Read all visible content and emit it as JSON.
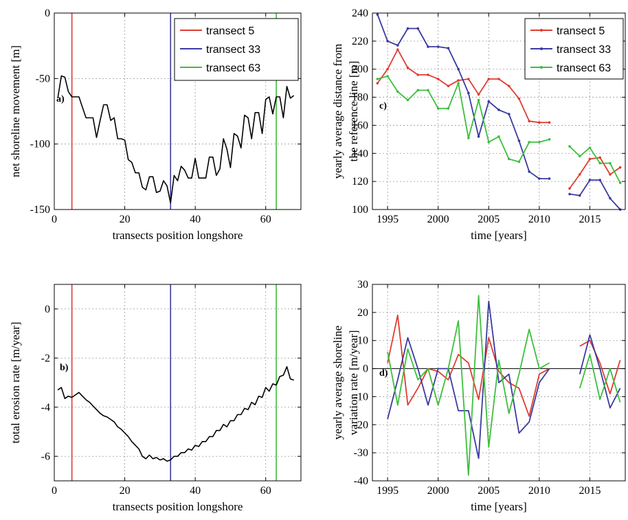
{
  "chart_data": [
    {
      "type": "line",
      "panel_label": "a)",
      "xlabel": "transects position longshore",
      "ylabel": "net shoreline movement [m]",
      "xlim": [
        0,
        70
      ],
      "ylim": [
        -150,
        0
      ],
      "xticks": [
        0,
        20,
        40,
        60
      ],
      "xtick_labels": [
        "0",
        "20",
        "40",
        "60"
      ],
      "yticks": [
        -150,
        -100,
        -50,
        0
      ],
      "ytick_labels": [
        "-150",
        "-100",
        "-50",
        "0"
      ],
      "grid": true,
      "legend_position": "top-right",
      "legend": [
        "transect 5",
        "transect 33",
        "transect 63"
      ],
      "vlines": [
        {
          "x": 5,
          "color": "#e03c31"
        },
        {
          "x": 33,
          "color": "#3a3aa0"
        },
        {
          "x": 63,
          "color": "#3cbf3c"
        }
      ],
      "series": [
        {
          "color": "#000000",
          "x": [
            1,
            2,
            3,
            4,
            5,
            6,
            7,
            8,
            9,
            10,
            11,
            12,
            13,
            14,
            15,
            16,
            17,
            18,
            19,
            20,
            21,
            22,
            23,
            24,
            25,
            26,
            27,
            28,
            29,
            30,
            31,
            32,
            33,
            34,
            35,
            36,
            37,
            38,
            39,
            40,
            41,
            42,
            43,
            44,
            45,
            46,
            47,
            48,
            49,
            50,
            51,
            52,
            53,
            54,
            55,
            56,
            57,
            58,
            59,
            60,
            61,
            62,
            63,
            64,
            65,
            66,
            67,
            68
          ],
          "y": [
            -65,
            -48,
            -49,
            -60,
            -64,
            -64,
            -64,
            -72,
            -80,
            -80,
            -80,
            -95,
            -82,
            -70,
            -70,
            -82,
            -80,
            -96,
            -96,
            -97,
            -112,
            -114,
            -122,
            -122,
            -133,
            -135,
            -125,
            -125,
            -137,
            -136,
            -128,
            -132,
            -145,
            -124,
            -128,
            -117,
            -120,
            -126,
            -126,
            -111,
            -126,
            -126,
            -126,
            -110,
            -110,
            -124,
            -119,
            -96,
            -104,
            -118,
            -92,
            -94,
            -103,
            -78,
            -80,
            -96,
            -76,
            -76,
            -92,
            -66,
            -64,
            -77,
            -64,
            -64,
            -80,
            -56,
            -65,
            -63
          ]
        }
      ]
    },
    {
      "type": "line",
      "panel_label": "b)",
      "xlabel": "transects position longshore",
      "ylabel": "total erosion rate [m/year]",
      "xlim": [
        0,
        70
      ],
      "ylim": [
        -7,
        1
      ],
      "xticks": [
        0,
        20,
        40,
        60
      ],
      "xtick_labels": [
        "0",
        "20",
        "40",
        "60"
      ],
      "yticks": [
        -6,
        -4,
        -2,
        0
      ],
      "ytick_labels": [
        "-6",
        "-4",
        "-2",
        "0"
      ],
      "grid": true,
      "vlines": [
        {
          "x": 5,
          "color": "#e03c31"
        },
        {
          "x": 33,
          "color": "#3a3aa0"
        },
        {
          "x": 63,
          "color": "#3cbf3c"
        }
      ],
      "series": [
        {
          "color": "#000000",
          "x": [
            1,
            2,
            3,
            4,
            5,
            6,
            7,
            8,
            9,
            10,
            11,
            12,
            13,
            14,
            15,
            16,
            17,
            18,
            19,
            20,
            21,
            22,
            23,
            24,
            25,
            26,
            27,
            28,
            29,
            30,
            31,
            32,
            33,
            34,
            35,
            36,
            37,
            38,
            39,
            40,
            41,
            42,
            43,
            44,
            45,
            46,
            47,
            48,
            49,
            50,
            51,
            52,
            53,
            54,
            55,
            56,
            57,
            58,
            59,
            60,
            61,
            62,
            63,
            64,
            65,
            66,
            67,
            68
          ],
          "y": [
            -3.3,
            -3.2,
            -3.65,
            -3.55,
            -3.6,
            -3.5,
            -3.4,
            -3.55,
            -3.7,
            -3.8,
            -3.95,
            -4.1,
            -4.25,
            -4.35,
            -4.4,
            -4.5,
            -4.6,
            -4.8,
            -4.9,
            -5.05,
            -5.2,
            -5.4,
            -5.55,
            -5.7,
            -6.0,
            -6.1,
            -5.95,
            -6.1,
            -6.05,
            -6.15,
            -6.1,
            -6.2,
            -6.15,
            -6.0,
            -6.0,
            -5.85,
            -5.85,
            -5.7,
            -5.75,
            -5.55,
            -5.6,
            -5.4,
            -5.4,
            -5.2,
            -5.2,
            -4.95,
            -4.95,
            -4.7,
            -4.8,
            -4.55,
            -4.55,
            -4.3,
            -4.3,
            -4.05,
            -4.1,
            -3.8,
            -3.9,
            -3.55,
            -3.6,
            -3.2,
            -3.35,
            -3.05,
            -3.1,
            -2.75,
            -2.7,
            -2.35,
            -2.85,
            -2.9
          ]
        }
      ]
    },
    {
      "type": "line",
      "panel_label": "c)",
      "xlabel": "time [years]",
      "ylabel": "yearly average distance from the reference line [m]",
      "ylabel_lines": [
        "yearly average distance from",
        "the reference line [m]"
      ],
      "xlim": [
        1993.5,
        2018.5
      ],
      "ylim": [
        100,
        240
      ],
      "xticks": [
        1995,
        2000,
        2005,
        2010,
        2015
      ],
      "xtick_labels": [
        "1995",
        "2000",
        "2005",
        "2010",
        "2015"
      ],
      "yticks": [
        100,
        120,
        140,
        160,
        180,
        200,
        220,
        240
      ],
      "ytick_labels": [
        "100",
        "120",
        "140",
        "160",
        "180",
        "200",
        "220",
        "240"
      ],
      "grid": true,
      "legend_position": "top-right",
      "legend": [
        "transect 5",
        "transect 33",
        "transect 63"
      ],
      "series": [
        {
          "name": "transect 5",
          "color": "#e03c31",
          "segments": [
            {
              "x": [
                1994,
                1995,
                1996,
                1997,
                1998,
                1999,
                2000,
                2001,
                2002,
                2003,
                2004,
                2005,
                2006,
                2007,
                2008,
                2009,
                2010,
                2011
              ],
              "y": [
                190,
                200,
                214,
                201,
                196,
                196,
                193,
                188,
                192,
                193,
                182,
                193,
                193,
                188,
                179,
                163,
                162,
                162
              ]
            },
            {
              "x": [
                2013,
                2014,
                2015,
                2016,
                2017,
                2018
              ],
              "y": [
                115,
                125,
                136,
                137,
                125,
                130
              ]
            }
          ]
        },
        {
          "name": "transect 33",
          "color": "#3a3aa0",
          "segments": [
            {
              "x": [
                1994,
                1995,
                1996,
                1997,
                1998,
                1999,
                2000,
                2001,
                2002,
                2003,
                2004,
                2005,
                2006,
                2007,
                2008,
                2009,
                2010,
                2011
              ],
              "y": [
                239,
                220,
                217,
                229,
                229,
                216,
                216,
                215,
                200,
                183,
                152,
                177,
                171,
                168,
                149,
                127,
                122,
                122
              ]
            },
            {
              "x": [
                2013,
                2014,
                2015,
                2016,
                2017,
                2018
              ],
              "y": [
                111,
                110,
                121,
                121,
                108,
                100
              ]
            }
          ]
        },
        {
          "name": "transect 63",
          "color": "#3cbf3c",
          "segments": [
            {
              "x": [
                1994,
                1995,
                1996,
                1997,
                1998,
                1999,
                2000,
                2001,
                2002,
                2003,
                2004,
                2005,
                2006,
                2007,
                2008,
                2009,
                2010,
                2011
              ],
              "y": [
                193,
                195,
                184,
                178,
                185,
                185,
                172,
                172,
                190,
                151,
                178,
                148,
                152,
                136,
                134,
                148,
                148,
                150
              ]
            },
            {
              "x": [
                2013,
                2014,
                2015,
                2016,
                2017,
                2018
              ],
              "y": [
                145,
                138,
                144,
                133,
                133,
                119
              ]
            }
          ]
        }
      ]
    },
    {
      "type": "line",
      "panel_label": "d)",
      "xlabel": "time [years]",
      "ylabel": "yearly average shoreline variation rate [m/year]",
      "ylabel_lines": [
        "yearly average shoreline",
        "variation rate [m/year]"
      ],
      "xlim": [
        1993.5,
        2018.5
      ],
      "ylim": [
        -40,
        30
      ],
      "xticks": [
        1995,
        2000,
        2005,
        2010,
        2015
      ],
      "xtick_labels": [
        "1995",
        "2000",
        "2005",
        "2010",
        "2015"
      ],
      "yticks": [
        -40,
        -30,
        -20,
        -10,
        0,
        10,
        20,
        30
      ],
      "ytick_labels": [
        "-40",
        "-30",
        "-20",
        "-10",
        "0",
        "10",
        "20",
        "30"
      ],
      "grid": true,
      "hline": 0,
      "series": [
        {
          "name": "transect 5",
          "color": "#e03c31",
          "segments": [
            {
              "x": [
                1995,
                1996,
                1997,
                1998,
                1999,
                2000,
                2001,
                2002,
                2003,
                2004,
                2005,
                2006,
                2007,
                2008,
                2009,
                2010,
                2011
              ],
              "y": [
                2,
                19,
                -13,
                -7,
                0,
                -1,
                -4,
                5,
                2,
                -11,
                11,
                -1,
                -5,
                -7,
                -17,
                -2,
                0
              ]
            },
            {
              "x": [
                2014,
                2015,
                2016,
                2017,
                2018
              ],
              "y": [
                8,
                10,
                2,
                -9,
                3
              ]
            }
          ]
        },
        {
          "name": "transect 33",
          "color": "#3a3aa0",
          "segments": [
            {
              "x": [
                1995,
                1996,
                1997,
                1998,
                1999,
                2000,
                2001,
                2002,
                2003,
                2004,
                2005,
                2006,
                2007,
                2008,
                2009,
                2010,
                2011
              ],
              "y": [
                -18,
                -4,
                11,
                0,
                -13,
                0,
                0,
                -15,
                -15,
                -32,
                24,
                -5,
                -2,
                -23,
                -19,
                -5,
                0
              ]
            },
            {
              "x": [
                2014,
                2015,
                2016,
                2017,
                2018
              ],
              "y": [
                -2,
                12,
                0,
                -14,
                -7
              ]
            }
          ]
        },
        {
          "name": "transect 63",
          "color": "#3cbf3c",
          "segments": [
            {
              "x": [
                1995,
                1996,
                1997,
                1998,
                1999,
                2000,
                2001,
                2002,
                2003,
                2004,
                2005,
                2006,
                2007,
                2008,
                2009,
                2010,
                2011
              ],
              "y": [
                6,
                -13,
                7,
                -4,
                0,
                -13,
                0,
                17,
                -38,
                26,
                -28,
                3,
                -16,
                -2,
                14,
                0,
                2
              ]
            },
            {
              "x": [
                2014,
                2015,
                2016,
                2017,
                2018
              ],
              "y": [
                -7,
                5,
                -11,
                0,
                -12
              ]
            }
          ]
        }
      ]
    }
  ]
}
